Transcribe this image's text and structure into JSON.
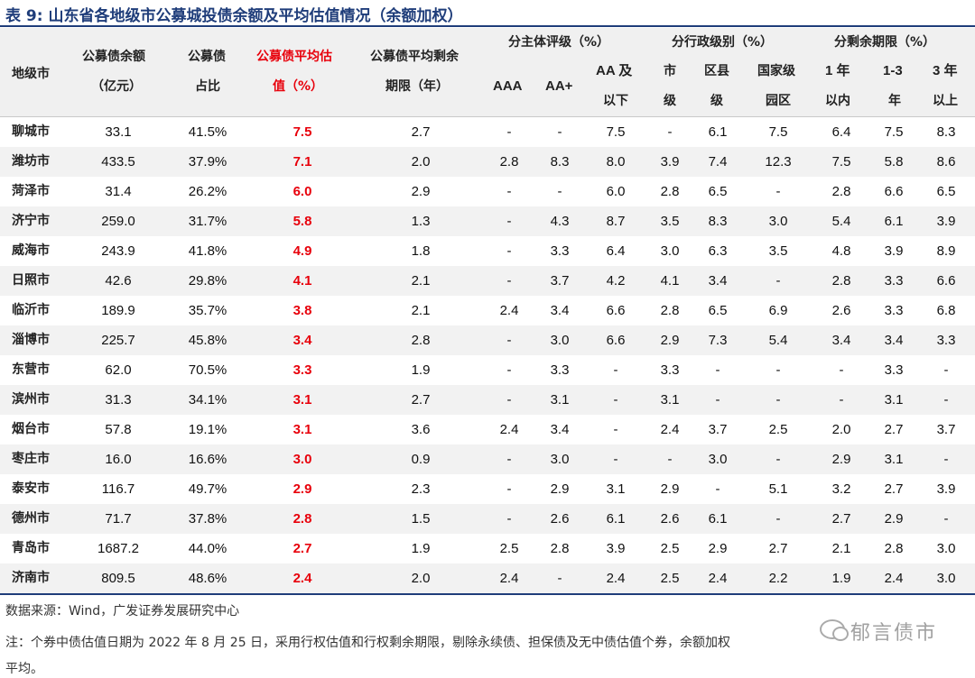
{
  "title": "表 9:  山东省各地级市公募城投债余额及平均估值情况（余额加权）",
  "headers": {
    "city": "地级市",
    "balance_l1": "公募债余额",
    "balance_l2": "（亿元）",
    "share_l1": "公募债",
    "share_l2": "占比",
    "valuation_l1": "公募债平均估",
    "valuation_l2": "值（%）",
    "term_l1": "公募债平均剩余",
    "term_l2": "期限（年）",
    "rating_group": "分主体评级（%）",
    "aaa": "AAA",
    "aaplus": "AA+",
    "aa_l1": "AA 及",
    "aa_l2": "以下",
    "admin_group": "分行政级别（%）",
    "admin_city_l1": "市",
    "admin_city_l2": "级",
    "admin_county_l1": "区县",
    "admin_county_l2": "级",
    "admin_park_l1": "国家级",
    "admin_park_l2": "园区",
    "remain_group": "分剩余期限（%）",
    "r1_l1": "1 年",
    "r1_l2": "以内",
    "r13_l1": "1-3",
    "r13_l2": "年",
    "r3_l1": "3 年",
    "r3_l2": "以上"
  },
  "rows": [
    [
      "聊城市",
      "33.1",
      "41.5%",
      "7.5",
      "2.7",
      "-",
      "-",
      "7.5",
      "-",
      "6.1",
      "7.5",
      "6.4",
      "7.5",
      "8.3"
    ],
    [
      "潍坊市",
      "433.5",
      "37.9%",
      "7.1",
      "2.0",
      "2.8",
      "8.3",
      "8.0",
      "3.9",
      "7.4",
      "12.3",
      "7.5",
      "5.8",
      "8.6"
    ],
    [
      "菏泽市",
      "31.4",
      "26.2%",
      "6.0",
      "2.9",
      "-",
      "-",
      "6.0",
      "2.8",
      "6.5",
      "-",
      "2.8",
      "6.6",
      "6.5"
    ],
    [
      "济宁市",
      "259.0",
      "31.7%",
      "5.8",
      "1.3",
      "-",
      "4.3",
      "8.7",
      "3.5",
      "8.3",
      "3.0",
      "5.4",
      "6.1",
      "3.9"
    ],
    [
      "威海市",
      "243.9",
      "41.8%",
      "4.9",
      "1.8",
      "-",
      "3.3",
      "6.4",
      "3.0",
      "6.3",
      "3.5",
      "4.8",
      "3.9",
      "8.9"
    ],
    [
      "日照市",
      "42.6",
      "29.8%",
      "4.1",
      "2.1",
      "-",
      "3.7",
      "4.2",
      "4.1",
      "3.4",
      "-",
      "2.8",
      "3.3",
      "6.6"
    ],
    [
      "临沂市",
      "189.9",
      "35.7%",
      "3.8",
      "2.1",
      "2.4",
      "3.4",
      "6.6",
      "2.8",
      "6.5",
      "6.9",
      "2.6",
      "3.3",
      "6.8"
    ],
    [
      "淄博市",
      "225.7",
      "45.8%",
      "3.4",
      "2.8",
      "-",
      "3.0",
      "6.6",
      "2.9",
      "7.3",
      "5.4",
      "3.4",
      "3.4",
      "3.3"
    ],
    [
      "东营市",
      "62.0",
      "70.5%",
      "3.3",
      "1.9",
      "-",
      "3.3",
      "-",
      "3.3",
      "-",
      "-",
      "-",
      "3.3",
      "-"
    ],
    [
      "滨州市",
      "31.3",
      "34.1%",
      "3.1",
      "2.7",
      "-",
      "3.1",
      "-",
      "3.1",
      "-",
      "-",
      "-",
      "3.1",
      "-"
    ],
    [
      "烟台市",
      "57.8",
      "19.1%",
      "3.1",
      "3.6",
      "2.4",
      "3.4",
      "-",
      "2.4",
      "3.7",
      "2.5",
      "2.0",
      "2.7",
      "3.7"
    ],
    [
      "枣庄市",
      "16.0",
      "16.6%",
      "3.0",
      "0.9",
      "-",
      "3.0",
      "-",
      "-",
      "3.0",
      "-",
      "2.9",
      "3.1",
      "-"
    ],
    [
      "泰安市",
      "116.7",
      "49.7%",
      "2.9",
      "2.3",
      "-",
      "2.9",
      "3.1",
      "2.9",
      "-",
      "5.1",
      "3.2",
      "2.7",
      "3.9"
    ],
    [
      "德州市",
      "71.7",
      "37.8%",
      "2.8",
      "1.5",
      "-",
      "2.6",
      "6.1",
      "2.6",
      "6.1",
      "-",
      "2.7",
      "2.9",
      "-"
    ],
    [
      "青岛市",
      "1687.2",
      "44.0%",
      "2.7",
      "1.9",
      "2.5",
      "2.8",
      "3.9",
      "2.5",
      "2.9",
      "2.7",
      "2.1",
      "2.8",
      "3.0"
    ],
    [
      "济南市",
      "809.5",
      "48.6%",
      "2.4",
      "2.0",
      "2.4",
      "-",
      "2.4",
      "2.5",
      "2.4",
      "2.2",
      "1.9",
      "2.4",
      "3.0"
    ]
  ],
  "source": "数据来源：Wind，广发证券发展研究中心",
  "note_line1": "注：个券中债估值日期为 2022 年 8 月 25 日，采用行权估值和行权剩余期限，剔除永续债、担保债及无中债估值个券，余额加权",
  "note_line2": "平均。",
  "watermark": "郁言债市",
  "watermark_icon": "wechat-icon",
  "colors": {
    "title": "#1f3d7a",
    "highlight": "#e8000b",
    "stripe": "#f2f2f2",
    "header_bg": "#f0f0f0"
  }
}
